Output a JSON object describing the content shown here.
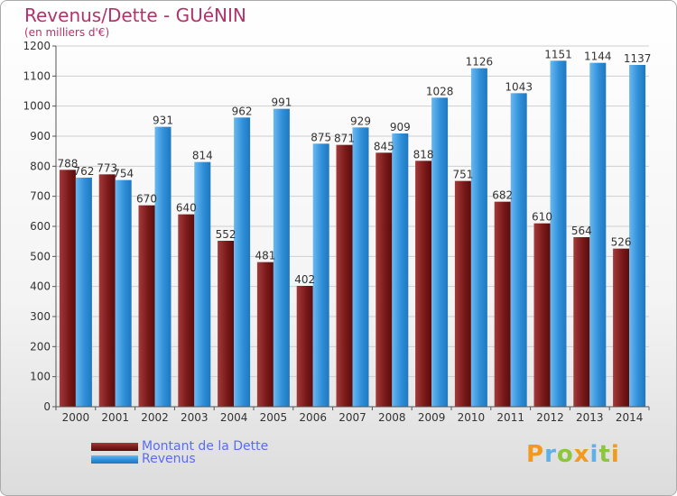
{
  "colors": {
    "debt": "#7a1a1a",
    "debt_light": "#a33a3a",
    "revenue": "#2f8fd8",
    "revenue_light": "#6ab8f0",
    "title": "#b2336a",
    "legend_text": "#5a6cf0"
  },
  "logo_text": "Proxiti",
  "chart_data": {
    "type": "bar",
    "title": "Revenus/Dette - GUéNIN",
    "subtitle": "(en milliers d'€)",
    "xlabel": "",
    "ylabel": "",
    "ylim": [
      0,
      1200
    ],
    "yticks": [
      0,
      100,
      200,
      300,
      400,
      500,
      600,
      700,
      800,
      900,
      1000,
      1100,
      1200
    ],
    "grid": true,
    "legend_position": "bottom-left",
    "categories": [
      "2000",
      "2001",
      "2002",
      "2003",
      "2004",
      "2005",
      "2006",
      "2007",
      "2008",
      "2009",
      "2010",
      "2011",
      "2012",
      "2013",
      "2014"
    ],
    "series": [
      {
        "name": "Montant de la Dette",
        "values": [
          788,
          773,
          670,
          640,
          552,
          481,
          402,
          871,
          845,
          818,
          751,
          682,
          610,
          564,
          526
        ]
      },
      {
        "name": "Revenus",
        "values": [
          762,
          754,
          931,
          814,
          962,
          991,
          875,
          929,
          909,
          1028,
          1126,
          1043,
          1151,
          1144,
          1137
        ]
      }
    ]
  }
}
